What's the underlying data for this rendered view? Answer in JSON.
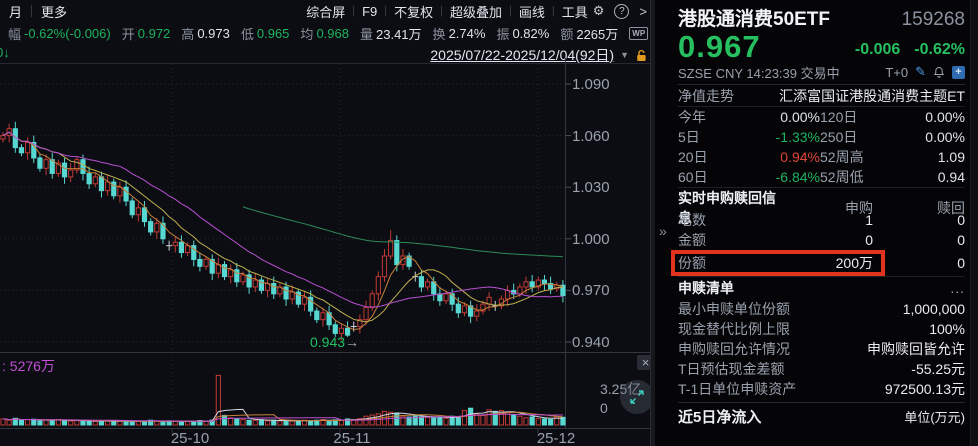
{
  "toolbar": {
    "tabs": [
      "月",
      "更多"
    ],
    "right_items": [
      "综合屏",
      "F9",
      "不复权",
      "超级叠加",
      "画线",
      "工具"
    ],
    "stats": [
      {
        "label": "幅",
        "value": "-0.62%(-0.006)",
        "color": "green"
      },
      {
        "label": "开",
        "value": "0.972",
        "color": "green"
      },
      {
        "label": "高",
        "value": "0.973",
        "color": "white"
      },
      {
        "label": "低",
        "value": "0.965",
        "color": "green"
      },
      {
        "label": "均",
        "value": "0.968",
        "color": "green"
      },
      {
        "label": "量",
        "value": "23.41万",
        "color": "white"
      },
      {
        "label": "换",
        "value": "2.74%",
        "color": "white"
      },
      {
        "label": "振",
        "value": "0.82%",
        "color": "white"
      },
      {
        "label": "额",
        "value": "2265万",
        "color": "white"
      }
    ],
    "wp_badge": "WP"
  },
  "icons": {
    "gear": "⚙",
    "help": "?",
    "more_chevron": ">",
    "caret_down": "▼",
    "close": "×",
    "panel_handle": "»",
    "arrow_right": "→",
    "pencil": "✎",
    "plus": "+",
    "ellipsis": "..."
  },
  "chart": {
    "date_range": "2025/07/22-2025/12/04(92日)",
    "left_marker": "0↓",
    "y_axis": [
      "1.090",
      "1.060",
      "1.030",
      "1.000",
      "0.970",
      "0.940"
    ],
    "x_axis": [
      "25-10",
      "25-11",
      "25-12"
    ],
    "low_annotation": "0.943",
    "volume_label": ": 5276万",
    "volume_axis_max": "3.25亿",
    "volume_axis_zero": "0"
  },
  "chart_data": {
    "type": "candlestick",
    "instrument": "港股通消费50ETF 159268",
    "date_range": "2025/07/22-2025/12/04",
    "days": 92,
    "ylim": [
      0.94,
      1.09
    ],
    "vol_axis_max": 3.25,
    "low_annotation_value": 0.943,
    "closes": [
      1.06,
      1.064,
      1.053,
      1.05,
      1.056,
      1.047,
      1.041,
      1.046,
      1.038,
      1.044,
      1.036,
      1.04,
      1.046,
      1.038,
      1.032,
      1.036,
      1.028,
      1.033,
      1.025,
      1.03,
      1.022,
      1.014,
      1.018,
      1.01,
      1.004,
      1.009,
      1.0,
      0.996,
      0.998,
      0.992,
      0.996,
      0.988,
      0.984,
      0.988,
      0.98,
      0.985,
      0.978,
      0.982,
      0.975,
      0.979,
      0.972,
      0.976,
      0.97,
      0.974,
      0.968,
      0.972,
      0.965,
      0.969,
      0.962,
      0.966,
      0.958,
      0.953,
      0.957,
      0.95,
      0.945,
      0.948,
      0.944,
      0.949,
      0.953,
      0.96,
      0.968,
      0.978,
      0.99,
      0.999,
      0.985,
      0.99,
      0.984,
      0.978,
      0.972,
      0.975,
      0.968,
      0.964,
      0.968,
      0.962,
      0.957,
      0.961,
      0.955,
      0.958,
      0.962,
      0.966,
      0.961,
      0.965,
      0.97,
      0.968,
      0.972,
      0.975,
      0.972,
      0.976,
      0.974,
      0.971,
      0.973,
      0.967
    ],
    "volumes": [
      0.38,
      0.3,
      0.42,
      0.28,
      0.33,
      0.36,
      0.26,
      0.31,
      0.29,
      0.34,
      0.27,
      0.25,
      0.3,
      0.24,
      0.28,
      0.22,
      0.26,
      0.24,
      0.21,
      0.27,
      0.23,
      0.2,
      0.26,
      0.22,
      0.3,
      0.24,
      0.21,
      0.26,
      0.23,
      0.2,
      0.24,
      0.22,
      0.28,
      0.25,
      0.3,
      3.1,
      0.6,
      0.45,
      0.38,
      0.35,
      0.3,
      0.28,
      0.33,
      0.26,
      0.3,
      0.25,
      0.28,
      0.24,
      0.27,
      0.3,
      0.26,
      0.3,
      0.34,
      0.28,
      0.32,
      0.3,
      0.38,
      0.33,
      0.4,
      0.55,
      0.62,
      0.7,
      0.85,
      0.8,
      0.75,
      0.55,
      0.5,
      0.6,
      0.52,
      0.48,
      0.45,
      0.5,
      0.42,
      0.55,
      0.48,
      0.9,
      1.05,
      0.7,
      0.6,
      0.95,
      0.85,
      0.9,
      0.8,
      0.65,
      0.55,
      0.45,
      0.5,
      0.4,
      0.38,
      0.35,
      0.52,
      0.48
    ],
    "dojis": [
      27,
      57,
      67,
      80
    ],
    "wick_overrides": {
      "56": {
        "l": 0.943
      },
      "63": {
        "h": 1.005
      }
    },
    "colors": {
      "up": "#c23a34",
      "down": "#57d8d2",
      "doji": "#ccd0d8",
      "grid": "#232733",
      "border": "#32363f"
    },
    "ma_price": [
      {
        "n": 5,
        "color": "#c8813a"
      },
      {
        "n": 10,
        "color": "#c0b14e"
      },
      {
        "n": 20,
        "color": "#b84fd0"
      },
      {
        "n": 0,
        "cumulative": true,
        "show_from": 39,
        "color": "#2e8b57"
      }
    ],
    "ma_volume": [
      {
        "n": 5,
        "color": "#d2d6de"
      },
      {
        "n": 10,
        "color": "#c8813a"
      },
      {
        "n": 20,
        "color": "#bd4fd0"
      }
    ]
  },
  "panel": {
    "title": "港股通消费50ETF",
    "code": "159268",
    "price": "0.967",
    "change": "-0.006",
    "change_pct": "-0.62%",
    "meta": "SZSE  CNY  14:23:39  交易中",
    "trade_mode": "T+0",
    "nav_label": "净值走势",
    "fund_name": "汇添富国证港股通消费主题ET",
    "perf": [
      {
        "l": "今年",
        "v": "0.00%",
        "c": "white",
        "l2": "120日",
        "v2": "0.00%",
        "c2": "white"
      },
      {
        "l": "5日",
        "v": "-1.33%",
        "c": "green",
        "l2": "250日",
        "v2": "0.00%",
        "c2": "white"
      },
      {
        "l": "20日",
        "v": "0.94%",
        "c": "red",
        "l2": "52周高",
        "v2": "1.09",
        "c2": "white"
      },
      {
        "l": "60日",
        "v": "-6.84%",
        "c": "green",
        "l2": "52周低",
        "v2": "0.94",
        "c2": "white"
      }
    ],
    "rt_section": {
      "title": "实时申购赎回信息",
      "col1": "申购",
      "col2": "赎回",
      "rows": [
        {
          "label": "笔数",
          "v1": "1",
          "v2": "0",
          "highlight": false
        },
        {
          "label": "金额",
          "v1": "0",
          "v2": "0",
          "highlight": false
        },
        {
          "label": "份额",
          "v1": "200万",
          "v2": "0",
          "highlight": true
        }
      ]
    },
    "list_section": {
      "title": "申赎清单",
      "more": "..."
    },
    "details": [
      {
        "label": "最小申赎单位份额",
        "value": "1,000,000"
      },
      {
        "label": "现金替代比例上限",
        "value": "100%"
      },
      {
        "label": "申购赎回允许情况",
        "value": "申购赎回皆允许"
      },
      {
        "label": "T日预估现金差额",
        "value": "-55.25元"
      },
      {
        "label": "T-1日单位申赎资产",
        "value": "972500.13元"
      }
    ],
    "flow_section": {
      "title": "近5日净流入",
      "unit": "单位(万元)"
    }
  },
  "ui_colors": {
    "green": "#1db35f",
    "red": "#e0453a",
    "accent_blue": "#2f6bb0",
    "magenta": "#c24fd4",
    "lock_orange": "#e09a1e"
  }
}
